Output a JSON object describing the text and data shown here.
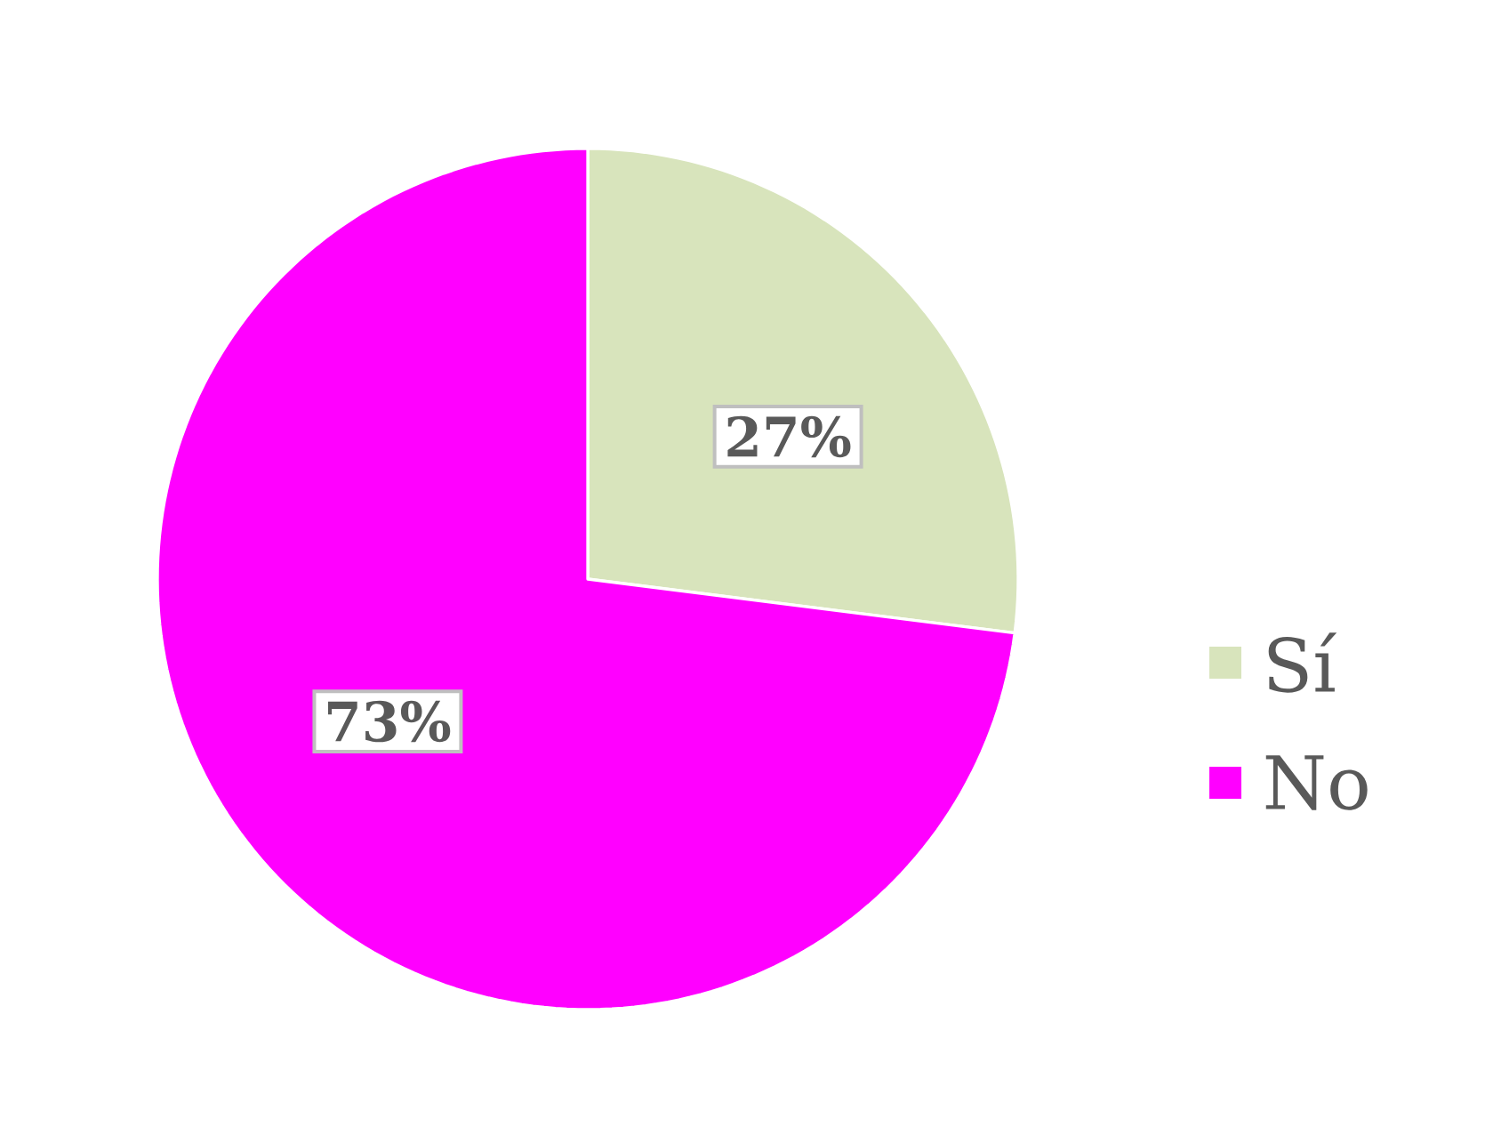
{
  "chart_data": {
    "type": "pie",
    "categories": [
      "Sí",
      "No"
    ],
    "values": [
      27,
      73
    ],
    "colors": [
      "#d8e4bc",
      "#ff00ff"
    ],
    "value_labels": [
      "27%",
      "73%"
    ],
    "legend": "right"
  }
}
